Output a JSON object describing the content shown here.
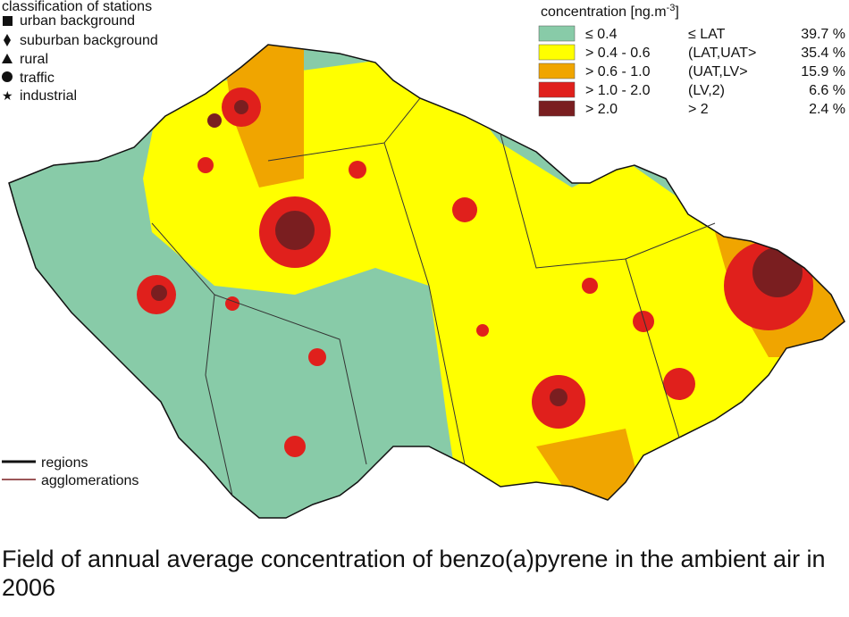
{
  "stations": {
    "title": "classification of stations",
    "items": [
      "urban background",
      "suburban background",
      "rural",
      "traffic",
      "industrial"
    ]
  },
  "concentration": {
    "title": "concentration [ng.m",
    "title_sup": "-3",
    "title_end": "]",
    "rows": [
      {
        "range": "≤ 0.4",
        "class": "≤ LAT",
        "share": "39.7 %"
      },
      {
        "range": "> 0.4 - 0.6",
        "class": "(LAT,UAT>",
        "share": "35.4 %"
      },
      {
        "range": "> 0.6 - 1.0",
        "class": "(UAT,LV>",
        "share": "15.9 %"
      },
      {
        "range": "> 1.0 - 2.0",
        "class": "(LV,2)",
        "share": "6.6 %"
      },
      {
        "range": "> 2.0",
        "class": "> 2",
        "share": "2.4 %"
      }
    ]
  },
  "boundaries": {
    "items": [
      "regions",
      "agglomerations"
    ]
  },
  "caption": "Field of annual average concentration of benzo(a)pyrene in the ambient air in 2006"
}
